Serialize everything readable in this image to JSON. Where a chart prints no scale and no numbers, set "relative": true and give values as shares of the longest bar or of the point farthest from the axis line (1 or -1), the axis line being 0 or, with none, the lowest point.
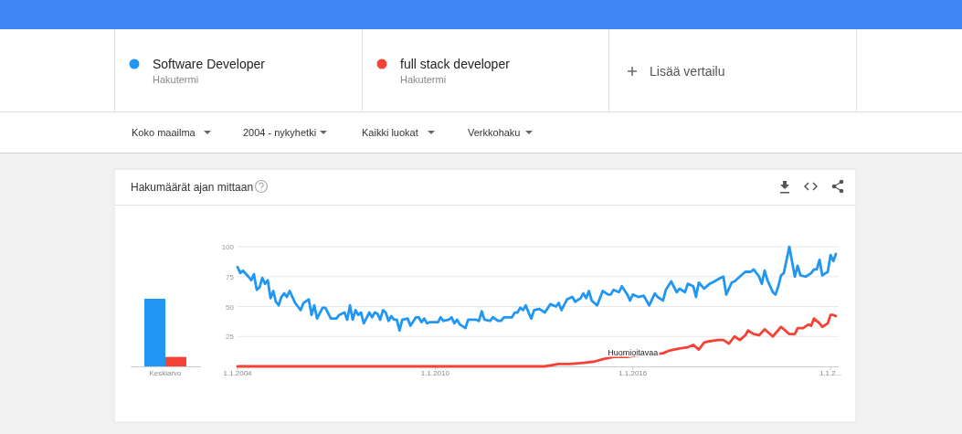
{
  "chart_data": [
    {
      "type": "other",
      "annotations": [
        "Hakutermi",
        "Hakutermi",
        "Lisää vertailu",
        "Koko maailma",
        "2004 - nykyhetki",
        "Kaikki luokat",
        "Verkkohaku"
      ]
    },
    {
      "type": "bar",
      "relative": true,
      "categories": [
        "Keskiarvo"
      ],
      "series": [
        {
          "color": "#2196f3",
          "values": [
            1
          ]
        },
        {
          "color": "#f44336",
          "values": [
            0.14
          ]
        }
      ]
    },
    {
      "type": "line",
      "title": "Hakumäärät ajan mittaan",
      "legend": "top",
      "grid": "y",
      "line_style": "solid",
      "marker": "none",
      "xlim": [
        "2004-01",
        "2022-04"
      ],
      "xticks": [
        {
          "value": "2004-01-01",
          "label": "1.1.2004"
        },
        {
          "value": "2010-01-01",
          "label": "1.1.2010"
        },
        {
          "value": "2016-01-01",
          "label": "1.1.2016"
        },
        {
          "value": "2022-01-01",
          "label": "1.1.2..."
        }
      ],
      "ylim": [
        0,
        100
      ],
      "yticks": [
        25,
        50,
        75,
        100
      ],
      "tick_labels": "xy",
      "annotations": [
        {
          "text": "Huomioitavaa",
          "x": "2016-01",
          "y": 8
        }
      ],
      "series": [
        {
          "name": "Software Developer",
          "color": "#2196f3",
          "x": [
            "2004-01",
            "2004-02",
            "2004-03",
            "2004-05",
            "2004-06",
            "2004-07",
            "2004-08",
            "2004-09",
            "2004-10",
            "2004-11",
            "2004-12",
            "2005-01",
            "2005-02",
            "2005-03",
            "2005-04",
            "2005-05",
            "2005-06",
            "2005-07",
            "2005-08",
            "2005-10",
            "2005-11",
            "2005-12",
            "2006-01",
            "2006-03",
            "2006-04",
            "2006-05",
            "2006-06",
            "2006-08",
            "2006-09",
            "2006-11",
            "2007-01",
            "2007-02",
            "2007-04",
            "2007-05",
            "2007-06",
            "2007-07",
            "2007-08",
            "2007-09",
            "2007-10",
            "2007-11",
            "2008-01",
            "2008-02",
            "2008-03",
            "2008-04",
            "2008-05",
            "2008-06",
            "2008-07",
            "2008-08",
            "2008-09",
            "2008-10",
            "2008-11",
            "2008-12",
            "2009-01",
            "2009-03",
            "2009-04",
            "2009-06",
            "2009-07",
            "2009-08",
            "2009-09",
            "2009-10",
            "2009-11",
            "2010-02",
            "2010-03",
            "2010-04",
            "2010-06",
            "2010-07",
            "2010-08",
            "2010-09",
            "2010-10",
            "2010-12",
            "2011-01",
            "2011-04",
            "2011-05",
            "2011-06",
            "2011-07",
            "2011-09",
            "2011-10",
            "2011-12",
            "2012-01",
            "2012-02",
            "2012-03",
            "2012-05",
            "2012-06",
            "2012-07",
            "2012-08",
            "2012-09",
            "2012-10",
            "2012-11",
            "2012-12",
            "2013-01",
            "2013-03",
            "2013-05",
            "2013-07",
            "2013-09",
            "2013-10",
            "2013-11",
            "2014-01",
            "2014-03",
            "2014-04",
            "2014-06",
            "2014-07",
            "2014-08",
            "2014-09",
            "2014-10",
            "2014-12",
            "2015-02",
            "2015-04",
            "2015-05",
            "2015-06",
            "2015-08",
            "2015-09",
            "2015-11",
            "2015-12",
            "2016-01",
            "2016-03",
            "2016-05",
            "2016-07",
            "2016-09",
            "2016-10",
            "2016-12",
            "2017-01",
            "2017-03",
            "2017-05",
            "2017-06",
            "2017-08",
            "2017-09",
            "2017-11",
            "2017-12",
            "2018-01",
            "2018-03",
            "2018-05",
            "2018-06",
            "2018-09",
            "2018-10",
            "2018-11",
            "2019-01",
            "2019-02",
            "2019-04",
            "2019-06",
            "2019-08",
            "2019-09",
            "2019-11",
            "2019-12",
            "2020-01",
            "2020-02",
            "2020-04",
            "2020-05",
            "2020-06",
            "2020-07",
            "2020-08",
            "2020-10",
            "2020-12",
            "2021-01",
            "2021-02",
            "2021-04",
            "2021-06",
            "2021-07",
            "2021-08",
            "2021-09",
            "2021-10",
            "2021-12",
            "2022-01",
            "2022-02",
            "2022-03"
          ],
          "values": [
            83,
            78,
            80,
            75,
            72,
            77,
            64,
            66,
            74,
            69,
            72,
            57,
            63,
            54,
            51,
            58,
            61,
            58,
            63,
            53,
            50,
            47,
            53,
            56,
            43,
            51,
            40,
            49,
            49,
            40,
            40,
            43,
            45,
            39,
            51,
            39,
            47,
            43,
            45,
            36,
            45,
            41,
            45,
            44,
            39,
            47,
            45,
            38,
            42,
            39,
            39,
            30,
            39,
            40,
            34,
            41,
            41,
            37,
            40,
            36,
            37,
            37,
            41,
            38,
            39,
            41,
            36,
            39,
            35,
            32,
            39,
            39,
            38,
            46,
            39,
            38,
            41,
            38,
            38,
            41,
            41,
            41,
            45,
            45,
            49,
            47,
            51,
            45,
            40,
            47,
            48,
            45,
            52,
            50,
            53,
            47,
            56,
            58,
            54,
            57,
            61,
            57,
            63,
            55,
            51,
            63,
            60,
            60,
            64,
            62,
            67,
            60,
            55,
            60,
            58,
            59,
            51,
            61,
            58,
            55,
            64,
            71,
            62,
            65,
            62,
            69,
            67,
            58,
            70,
            65,
            69,
            70,
            74,
            75,
            60,
            70,
            71,
            75,
            79,
            79,
            81,
            75,
            69,
            80,
            72,
            62,
            60,
            67,
            76,
            78,
            100,
            75,
            84,
            76,
            75,
            78,
            81,
            81,
            89,
            76,
            79,
            93,
            88,
            94
          ]
        },
        {
          "name": "full stack developer",
          "color": "#f44336",
          "x": [
            "2004-01",
            "2013-05",
            "2013-10",
            "2014-02",
            "2014-07",
            "2014-11",
            "2015-02",
            "2015-06",
            "2015-11",
            "2016-05",
            "2016-09",
            "2016-12",
            "2017-02",
            "2017-06",
            "2017-09",
            "2017-11",
            "2018-01",
            "2018-03",
            "2018-05",
            "2018-08",
            "2018-10",
            "2018-12",
            "2019-02",
            "2019-04",
            "2019-06",
            "2019-07",
            "2019-09",
            "2019-11",
            "2020-01",
            "2020-04",
            "2020-07",
            "2020-10",
            "2020-12",
            "2021-01",
            "2021-03",
            "2021-05",
            "2021-06",
            "2021-07",
            "2021-09",
            "2021-10",
            "2021-12",
            "2022-01",
            "2022-02",
            "2022-03"
          ],
          "values": [
            0,
            0,
            2,
            2,
            3,
            4,
            6,
            8,
            8,
            10,
            10,
            11,
            13,
            15,
            16,
            18,
            14,
            20,
            21,
            22,
            22,
            19,
            25,
            22,
            26,
            30,
            27,
            26,
            31,
            25,
            33,
            27,
            27,
            32,
            32,
            35,
            34,
            40,
            36,
            33,
            36,
            43,
            43,
            42
          ]
        }
      ]
    }
  ]
}
